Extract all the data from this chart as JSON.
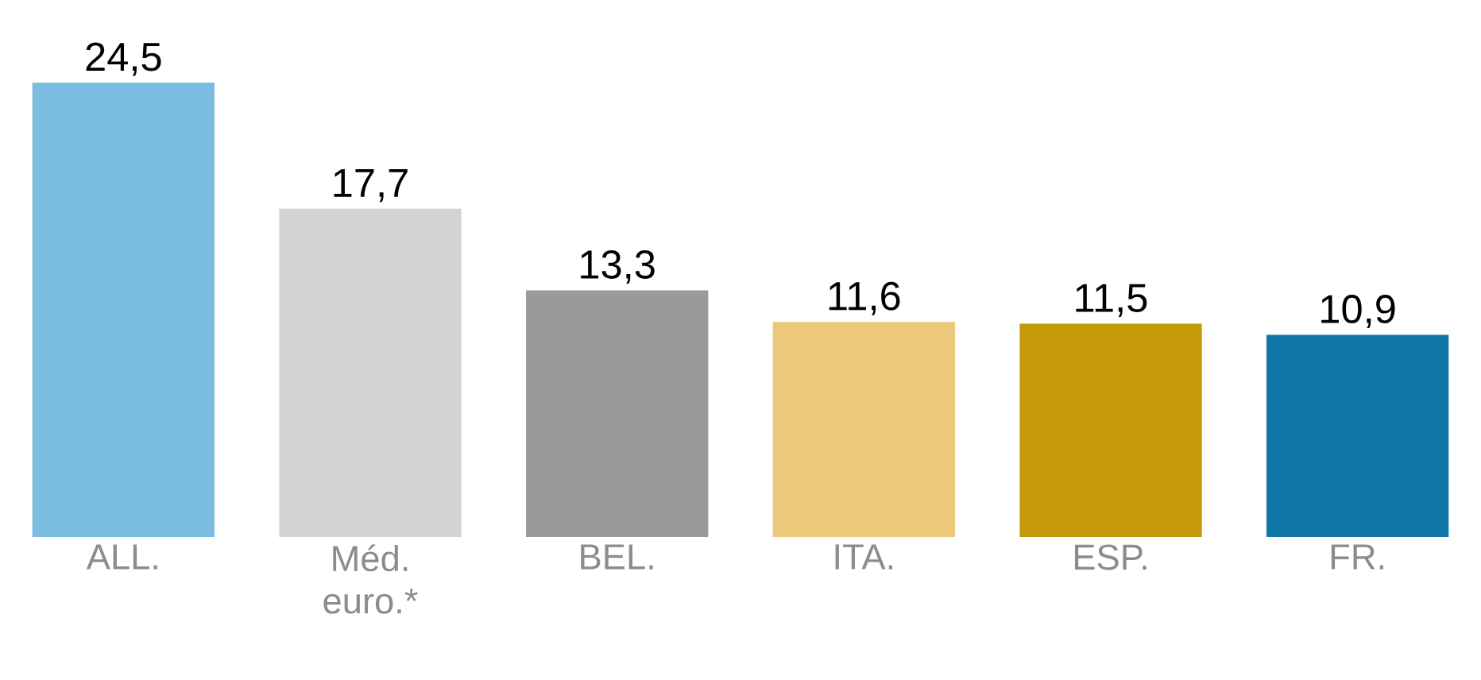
{
  "chart_data": {
    "type": "bar",
    "categories": [
      "ALL.",
      "Méd. euro.*",
      "BEL.",
      "ITA.",
      "ESP.",
      "FR."
    ],
    "values": [
      24.5,
      17.7,
      13.3,
      11.6,
      11.5,
      10.9
    ],
    "value_labels": [
      "24,5",
      "17,7",
      "13,3",
      "11,6",
      "11,5",
      "10,9"
    ],
    "colors": [
      "#7bbde0",
      "#d3d3d3",
      "#9a9a9a",
      "#ecc97a",
      "#c49a0b",
      "#1177aa"
    ]
  }
}
